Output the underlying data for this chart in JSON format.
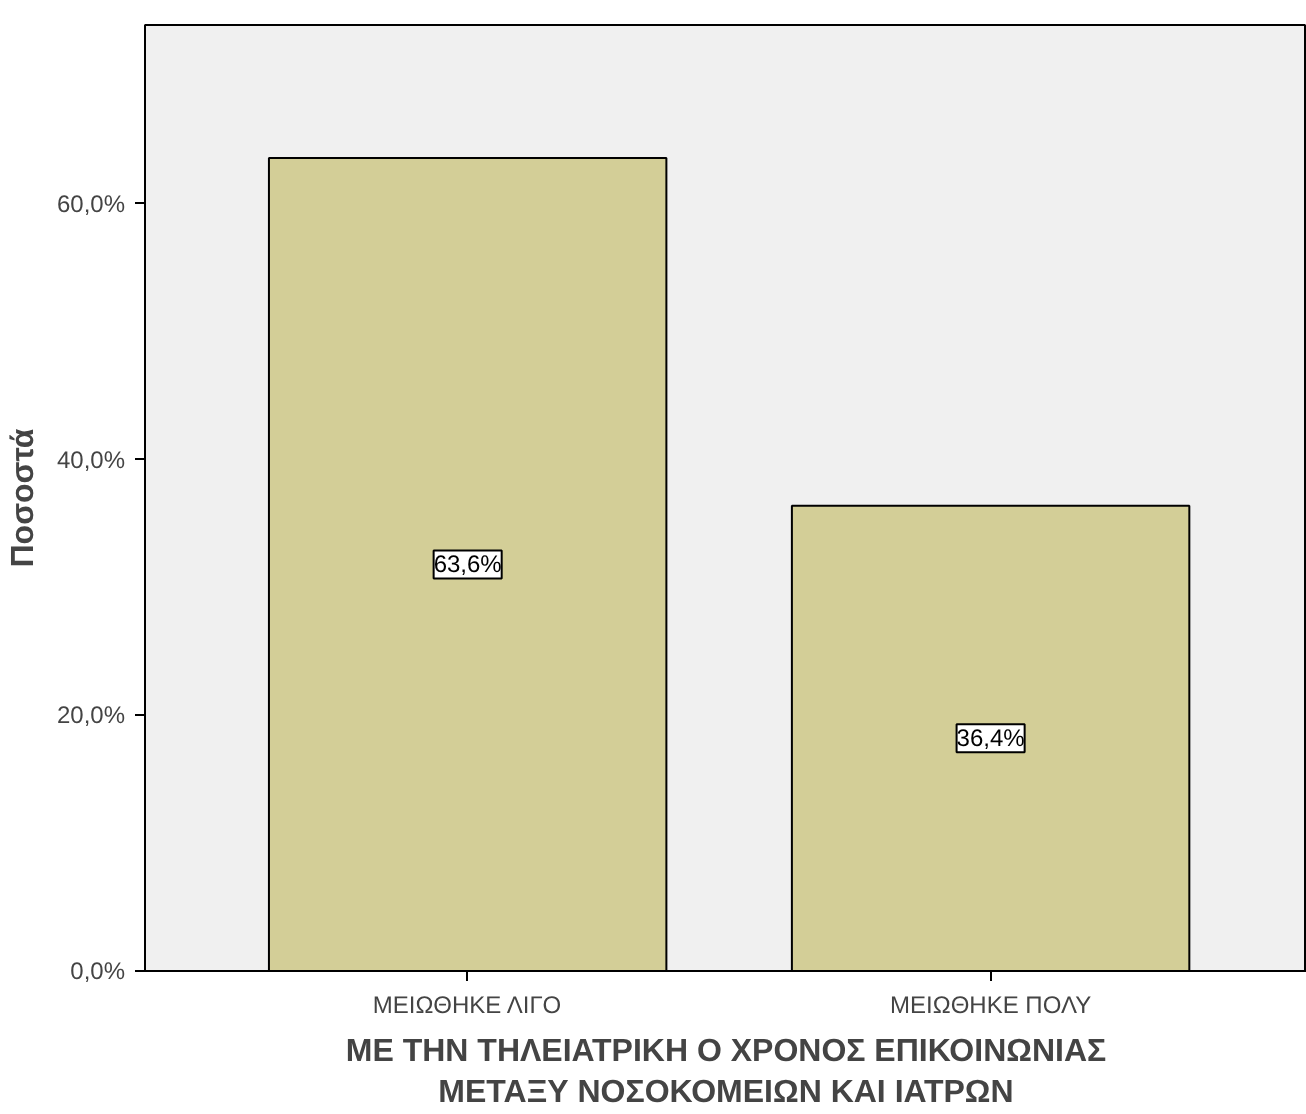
{
  "chart_data": {
    "type": "bar",
    "ylabel": "Ποσοστά",
    "xlabel": "ΜΕ ΤΗΝ ΤΗΛΕΙΑΤΡΙΚΗ Ο ΧΡΟΝΟΣ ΕΠΙΚΟΙΝΩΝΙΑΣ ΜΕΤΑΞΥ ΝΟΣΟΚΟΜΕΙΩΝ ΚΑΙ ΙΑΤΡΩΝ",
    "categories": [
      "ΜΕΙΩΘΗΚΕ ΛΙΓΟ",
      "ΜΕΙΩΘΗΚΕ ΠΟΛΥ"
    ],
    "values": [
      63.6,
      36.4
    ],
    "color": "#d3ce97",
    "value_labels": [
      "63,6%",
      "36,4%"
    ],
    "ylim": [
      0,
      74
    ],
    "yticks": [
      {
        "value": 0,
        "label": "0,0%"
      },
      {
        "value": 20,
        "label": "20,0%"
      },
      {
        "value": 40,
        "label": "40,0%"
      },
      {
        "value": 60,
        "label": "60,0%"
      }
    ],
    "grid": false
  }
}
